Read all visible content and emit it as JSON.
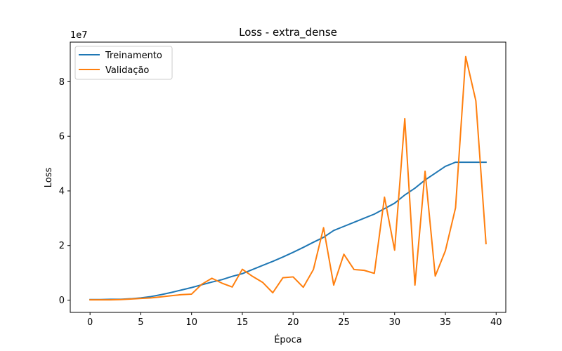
{
  "chart_data": {
    "type": "line",
    "title": "Loss - extra_dense",
    "xlabel": "Época",
    "ylabel": "Loss",
    "y_scale_label": "1e7",
    "xlim": [
      -1.95,
      40.95
    ],
    "ylim": [
      -0.45,
      9.45
    ],
    "x_ticks": [
      0,
      5,
      10,
      15,
      20,
      25,
      30,
      35,
      40
    ],
    "y_ticks": [
      0,
      2,
      4,
      6,
      8
    ],
    "grid": false,
    "legend_position": "top-left",
    "x": [
      0,
      1,
      2,
      3,
      4,
      5,
      6,
      7,
      8,
      9,
      10,
      11,
      12,
      13,
      14,
      15,
      16,
      17,
      18,
      19,
      20,
      21,
      22,
      23,
      24,
      25,
      26,
      27,
      28,
      29,
      30,
      31,
      32,
      33,
      34,
      35,
      36,
      37,
      38,
      39
    ],
    "series": [
      {
        "name": "Treinamento",
        "color": "#1f77b4",
        "values": [
          0.02,
          0.02,
          0.03,
          0.03,
          0.05,
          0.08,
          0.13,
          0.2,
          0.28,
          0.37,
          0.46,
          0.56,
          0.66,
          0.75,
          0.87,
          0.97,
          1.12,
          1.27,
          1.42,
          1.58,
          1.75,
          1.93,
          2.12,
          2.3,
          2.55,
          2.7,
          2.85,
          3.0,
          3.15,
          3.35,
          3.55,
          3.85,
          4.1,
          4.4,
          4.65,
          4.9,
          5.05,
          5.05,
          5.05,
          5.05
        ]
      },
      {
        "name": "Validação",
        "color": "#ff7f0e",
        "values": [
          0.01,
          0.01,
          0.01,
          0.02,
          0.04,
          0.06,
          0.08,
          0.12,
          0.16,
          0.2,
          0.22,
          0.58,
          0.8,
          0.62,
          0.48,
          1.13,
          0.87,
          0.65,
          0.27,
          0.82,
          0.85,
          0.47,
          1.12,
          2.65,
          0.55,
          1.68,
          1.12,
          1.09,
          0.98,
          3.77,
          1.83,
          6.65,
          0.55,
          4.72,
          0.88,
          1.81,
          3.38,
          8.92,
          7.3,
          2.07
        ]
      }
    ]
  }
}
